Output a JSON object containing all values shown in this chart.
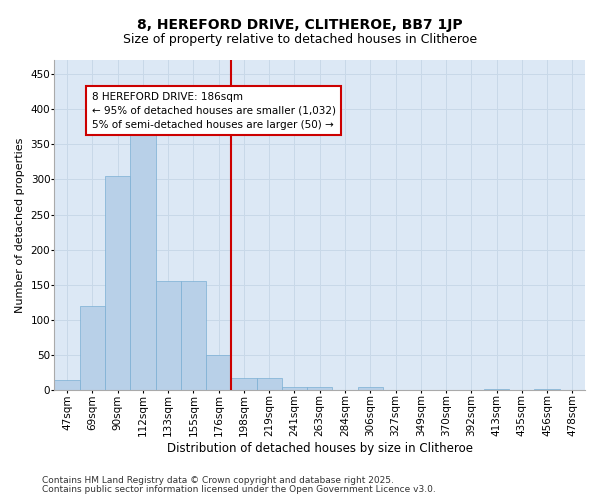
{
  "title1": "8, HEREFORD DRIVE, CLITHEROE, BB7 1JP",
  "title2": "Size of property relative to detached houses in Clitheroe",
  "xlabel": "Distribution of detached houses by size in Clitheroe",
  "ylabel": "Number of detached properties",
  "categories": [
    "47sqm",
    "69sqm",
    "90sqm",
    "112sqm",
    "133sqm",
    "155sqm",
    "176sqm",
    "198sqm",
    "219sqm",
    "241sqm",
    "263sqm",
    "284sqm",
    "306sqm",
    "327sqm",
    "349sqm",
    "370sqm",
    "392sqm",
    "413sqm",
    "435sqm",
    "456sqm",
    "478sqm"
  ],
  "values": [
    15,
    120,
    305,
    365,
    155,
    155,
    50,
    18,
    18,
    5,
    5,
    0,
    5,
    0,
    0,
    0,
    0,
    2,
    0,
    2,
    0
  ],
  "bar_color": "#b8d0e8",
  "bar_edge_color": "#7aafd4",
  "vline_x_index": 7,
  "vline_color": "#cc0000",
  "annotation_text": "8 HEREFORD DRIVE: 186sqm\n← 95% of detached houses are smaller (1,032)\n5% of semi-detached houses are larger (50) →",
  "annotation_box_color": "#cc0000",
  "ylim": [
    0,
    470
  ],
  "yticks": [
    0,
    50,
    100,
    150,
    200,
    250,
    300,
    350,
    400,
    450
  ],
  "grid_color": "#c8d8e8",
  "background_color": "#dce8f5",
  "footer1": "Contains HM Land Registry data © Crown copyright and database right 2025.",
  "footer2": "Contains public sector information licensed under the Open Government Licence v3.0.",
  "title1_fontsize": 10,
  "title2_fontsize": 9,
  "xlabel_fontsize": 8.5,
  "ylabel_fontsize": 8,
  "tick_fontsize": 7.5,
  "annotation_fontsize": 7.5,
  "footer_fontsize": 6.5
}
